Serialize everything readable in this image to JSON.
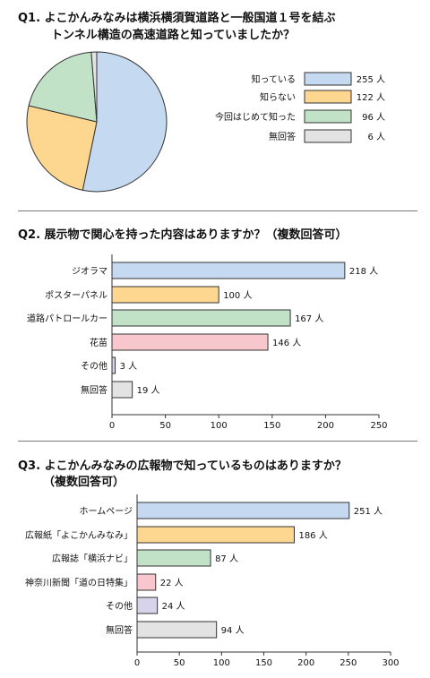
{
  "chart_data": [
    {
      "type": "pie",
      "title_line1": "Q1. よこかんみなみは横浜横須賀道路と一般国道１号を結ぶ",
      "title_line2": "トンネル構造の高速道路と知っていましたか？",
      "categories": [
        "知っている",
        "知らない",
        "今回はじめて知った",
        "無回答"
      ],
      "values": [
        255,
        122,
        96,
        6
      ],
      "value_labels": [
        "255 人",
        "122 人",
        "96 人",
        "6 人"
      ],
      "colors": [
        "#c5d9f0",
        "#fdd78f",
        "#c1e2c6",
        "#e3e3e3"
      ],
      "legend_position": "right"
    },
    {
      "type": "bar",
      "orientation": "horizontal",
      "title": "Q2. 展示物で関心を持った内容はありますか？（複数回答可）",
      "categories": [
        "ジオラマ",
        "ポスターパネル",
        "道路パトロールカー",
        "花苗",
        "その他",
        "無回答"
      ],
      "values": [
        218,
        100,
        167,
        146,
        3,
        19
      ],
      "value_labels": [
        "218 人",
        "100 人",
        "167 人",
        "146 人",
        "3 人",
        "19 人"
      ],
      "colors": [
        "#c5d9f0",
        "#fdd78f",
        "#c1e2c6",
        "#f7c7cd",
        "#d7d3ea",
        "#e3e3e3"
      ],
      "xlim": [
        0,
        250
      ],
      "xticks": [
        "0",
        "50",
        "100",
        "150",
        "200",
        "250"
      ]
    },
    {
      "type": "bar",
      "orientation": "horizontal",
      "title_line1": "Q3. よこかんみなみの広報物で知っているものはありますか？",
      "title_line2": "（複数回答可）",
      "categories": [
        "ホームページ",
        "広報紙「よこかんみなみ」",
        "広報誌「横浜ナビ」",
        "神奈川新聞「道の日特集」",
        "その他",
        "無回答"
      ],
      "values": [
        251,
        186,
        87,
        22,
        24,
        94
      ],
      "value_labels": [
        "251 人",
        "186 人",
        "87 人",
        "22 人",
        "24 人",
        "94 人"
      ],
      "colors": [
        "#c5d9f0",
        "#fdd78f",
        "#c1e2c6",
        "#f7c7cd",
        "#d7d3ea",
        "#e3e3e3"
      ],
      "xlim": [
        0,
        300
      ],
      "xticks": [
        "0",
        "50",
        "100",
        "150",
        "200",
        "250",
        "300"
      ]
    }
  ]
}
